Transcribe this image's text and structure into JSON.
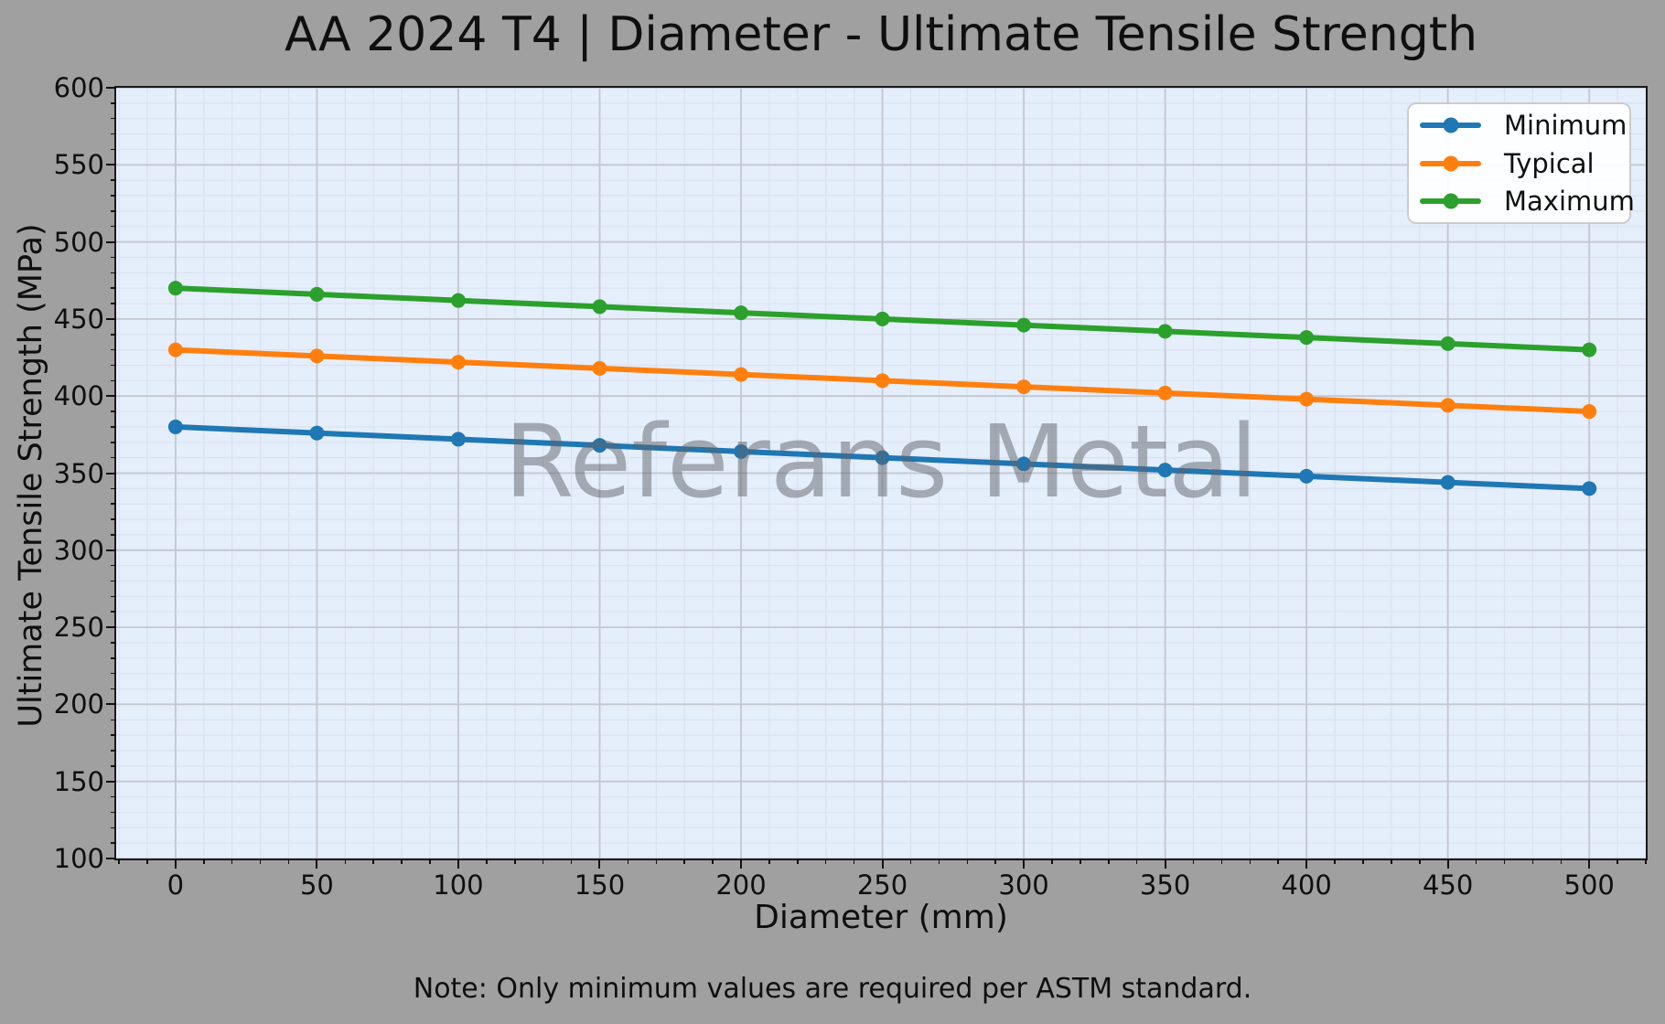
{
  "chart": {
    "title": "AA 2024 T4 | Diameter - Ultimate Tensile Strength",
    "xlabel": "Diameter (mm)",
    "ylabel": "Ultimate Tensile Strength (MPa)",
    "watermark": "Referans Metal",
    "note": "Note: Only minimum values are required per ASTM standard."
  },
  "chart_data": {
    "type": "line",
    "title": "AA 2024 T4 | Diameter - Ultimate Tensile Strength",
    "xlabel": "Diameter (mm)",
    "ylabel": "Ultimate Tensile Strength (MPa)",
    "x": [
      0,
      50,
      100,
      150,
      200,
      250,
      300,
      350,
      400,
      450,
      500
    ],
    "series": [
      {
        "name": "Minimum",
        "color": "#1f77b4",
        "values": [
          380,
          376,
          372,
          368,
          364,
          360,
          356,
          352,
          348,
          344,
          340
        ]
      },
      {
        "name": "Typical",
        "color": "#ff7f0e",
        "values": [
          430,
          426,
          422,
          418,
          414,
          410,
          406,
          402,
          398,
          394,
          390
        ]
      },
      {
        "name": "Maximum",
        "color": "#2ca02c",
        "values": [
          470,
          466,
          462,
          458,
          454,
          450,
          446,
          442,
          438,
          434,
          430
        ]
      }
    ],
    "xlim": [
      -21,
      520
    ],
    "ylim": [
      100,
      600
    ],
    "x_ticks": [
      0,
      50,
      100,
      150,
      200,
      250,
      300,
      350,
      400,
      450,
      500
    ],
    "y_ticks": [
      100,
      150,
      200,
      250,
      300,
      350,
      400,
      450,
      500,
      550,
      600
    ],
    "minor_step_x": 10,
    "minor_step_y": 10,
    "grid": true,
    "legend_position": "top-right",
    "marker": "circle",
    "figure_bg": "#a0a0a0",
    "plot_bg": "#e5eefb",
    "major_grid_color": "#c3c7cf",
    "minor_grid_color": "#dae2f0"
  }
}
